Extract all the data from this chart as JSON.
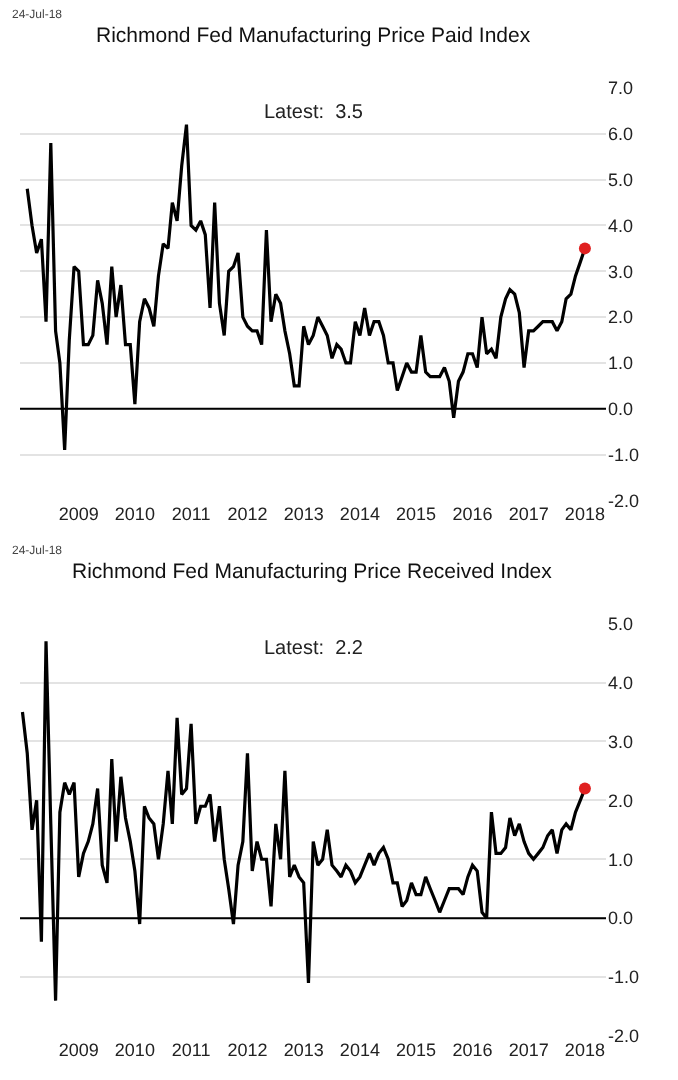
{
  "chart_data": [
    {
      "type": "line",
      "title": "Richmond Fed Manufacturing Price Paid Index",
      "annotations": [
        "24-Jul-18",
        "Latest:  3.5"
      ],
      "x": [
        "2008-08",
        "2008-09",
        "2008-10",
        "2008-11",
        "2008-12",
        "2009-01",
        "2009-02",
        "2009-03",
        "2009-04",
        "2009-05",
        "2009-06",
        "2009-07",
        "2009-08",
        "2009-09",
        "2009-10",
        "2009-11",
        "2009-12",
        "2010-01",
        "2010-02",
        "2010-03",
        "2010-04",
        "2010-05",
        "2010-06",
        "2010-07",
        "2010-08",
        "2010-09",
        "2010-10",
        "2010-11",
        "2010-12",
        "2011-01",
        "2011-02",
        "2011-03",
        "2011-04",
        "2011-05",
        "2011-06",
        "2011-07",
        "2011-08",
        "2011-09",
        "2011-10",
        "2011-11",
        "2011-12",
        "2012-01",
        "2012-02",
        "2012-03",
        "2012-04",
        "2012-05",
        "2012-06",
        "2012-07",
        "2012-08",
        "2012-09",
        "2012-10",
        "2012-11",
        "2012-12",
        "2013-01",
        "2013-02",
        "2013-03",
        "2013-04",
        "2013-05",
        "2013-06",
        "2013-07",
        "2013-08",
        "2013-09",
        "2013-10",
        "2013-11",
        "2013-12",
        "2014-01",
        "2014-02",
        "2014-03",
        "2014-04",
        "2014-05",
        "2014-06",
        "2014-07",
        "2014-08",
        "2014-09",
        "2014-10",
        "2014-11",
        "2014-12",
        "2015-01",
        "2015-02",
        "2015-03",
        "2015-04",
        "2015-05",
        "2015-06",
        "2015-07",
        "2015-08",
        "2015-09",
        "2015-10",
        "2015-11",
        "2015-12",
        "2016-01",
        "2016-02",
        "2016-03",
        "2016-04",
        "2016-05",
        "2016-06",
        "2016-07",
        "2016-08",
        "2016-09",
        "2016-10",
        "2016-11",
        "2016-12",
        "2017-01",
        "2017-02",
        "2017-03",
        "2017-04",
        "2017-05",
        "2017-06",
        "2017-07",
        "2017-08",
        "2017-09",
        "2017-10",
        "2017-11",
        "2017-12",
        "2018-01",
        "2018-02",
        "2018-03",
        "2018-04",
        "2018-05",
        "2018-06",
        "2018-07"
      ],
      "series": [
        {
          "color": "#000000",
          "values": [
            4.8,
            4.0,
            3.4,
            3.7,
            1.9,
            5.8,
            1.7,
            1.0,
            -0.9,
            1.5,
            3.1,
            3.0,
            1.4,
            1.4,
            1.6,
            2.8,
            2.3,
            1.4,
            3.1,
            2.0,
            2.7,
            1.4,
            1.4,
            0.1,
            1.9,
            2.4,
            2.2,
            1.8,
            2.9,
            3.6,
            3.5,
            4.5,
            4.1,
            5.3,
            6.2,
            4.0,
            3.9,
            4.1,
            3.8,
            2.2,
            4.5,
            2.3,
            1.6,
            3.0,
            3.1,
            3.4,
            2.0,
            1.8,
            1.7,
            1.7,
            1.4,
            3.9,
            1.9,
            2.5,
            2.3,
            1.7,
            1.2,
            0.5,
            0.5,
            1.8,
            1.4,
            1.6,
            2.0,
            1.8,
            1.6,
            1.1,
            1.4,
            1.3,
            1.0,
            1.0,
            1.9,
            1.6,
            2.2,
            1.6,
            1.9,
            1.9,
            1.6,
            1.0,
            1.0,
            0.4,
            0.7,
            1.0,
            0.8,
            0.8,
            1.6,
            0.8,
            0.7,
            0.7,
            0.7,
            0.9,
            0.6,
            -0.2,
            0.6,
            0.8,
            1.2,
            1.2,
            0.9,
            2.0,
            1.2,
            1.3,
            1.1,
            2.0,
            2.4,
            2.6,
            2.5,
            2.1,
            0.9,
            1.7,
            1.7,
            1.8,
            1.9,
            1.9,
            1.9,
            1.7,
            1.9,
            2.4,
            2.5,
            2.9,
            3.2,
            3.5
          ]
        },
        {
          "type": "scatter",
          "marker": "circle",
          "color": "#e02020",
          "x": [
            "2018-07"
          ],
          "values": [
            3.5
          ]
        }
      ],
      "xlim": [
        "2008-06-15",
        "2018-11-15"
      ],
      "xticks": [
        {
          "value": "2009-07-01",
          "label": "2009"
        },
        {
          "value": "2010-07-01",
          "label": "2010"
        },
        {
          "value": "2011-07-01",
          "label": "2011"
        },
        {
          "value": "2012-07-01",
          "label": "2012"
        },
        {
          "value": "2013-07-01",
          "label": "2013"
        },
        {
          "value": "2014-07-01",
          "label": "2014"
        },
        {
          "value": "2015-07-01",
          "label": "2015"
        },
        {
          "value": "2016-07-01",
          "label": "2016"
        },
        {
          "value": "2017-07-01",
          "label": "2017"
        },
        {
          "value": "2018-07-01",
          "label": "2018"
        }
      ],
      "ylim": [
        -2,
        7
      ],
      "yticks": [
        {
          "value": -2,
          "label": "-2.0"
        },
        {
          "value": -1,
          "label": "-1.0"
        },
        {
          "value": 0,
          "label": "0.0"
        },
        {
          "value": 1,
          "label": "1.0"
        },
        {
          "value": 2,
          "label": "2.0"
        },
        {
          "value": 3,
          "label": "3.0"
        },
        {
          "value": 4,
          "label": "4.0"
        },
        {
          "value": 5,
          "label": "5.0"
        },
        {
          "value": 6,
          "label": "6.0"
        },
        {
          "value": 7,
          "label": "7.0"
        }
      ],
      "ref_lines": [
        {
          "axis": "y",
          "value": 0,
          "color": "#000000"
        }
      ],
      "grid": "y",
      "marker": "none",
      "line_style": "solid"
    },
    {
      "type": "line",
      "title": "Richmond Fed Manufacturing Price Received Index",
      "annotations": [
        "24-Jul-18",
        "Latest:  2.2"
      ],
      "x": [
        "2008-07",
        "2008-08",
        "2008-09",
        "2008-10",
        "2008-11",
        "2008-12",
        "2009-01",
        "2009-02",
        "2009-03",
        "2009-04",
        "2009-05",
        "2009-06",
        "2009-07",
        "2009-08",
        "2009-09",
        "2009-10",
        "2009-11",
        "2009-12",
        "2010-01",
        "2010-02",
        "2010-03",
        "2010-04",
        "2010-05",
        "2010-06",
        "2010-07",
        "2010-08",
        "2010-09",
        "2010-10",
        "2010-11",
        "2010-12",
        "2011-01",
        "2011-02",
        "2011-03",
        "2011-04",
        "2011-05",
        "2011-06",
        "2011-07",
        "2011-08",
        "2011-09",
        "2011-10",
        "2011-11",
        "2011-12",
        "2012-01",
        "2012-02",
        "2012-03",
        "2012-04",
        "2012-05",
        "2012-06",
        "2012-07",
        "2012-08",
        "2012-09",
        "2012-10",
        "2012-11",
        "2012-12",
        "2013-01",
        "2013-02",
        "2013-03",
        "2013-04",
        "2013-05",
        "2013-06",
        "2013-07",
        "2013-08",
        "2013-09",
        "2013-10",
        "2013-11",
        "2013-12",
        "2014-01",
        "2014-02",
        "2014-03",
        "2014-04",
        "2014-05",
        "2014-06",
        "2014-07",
        "2014-08",
        "2014-09",
        "2014-10",
        "2014-11",
        "2014-12",
        "2015-01",
        "2015-02",
        "2015-03",
        "2015-04",
        "2015-05",
        "2015-06",
        "2015-07",
        "2015-08",
        "2015-09",
        "2015-10",
        "2015-11",
        "2015-12",
        "2016-01",
        "2016-02",
        "2016-03",
        "2016-04",
        "2016-05",
        "2016-06",
        "2016-07",
        "2016-08",
        "2016-09",
        "2016-10",
        "2016-11",
        "2016-12",
        "2017-01",
        "2017-02",
        "2017-03",
        "2017-04",
        "2017-05",
        "2017-06",
        "2017-07",
        "2017-08",
        "2017-09",
        "2017-10",
        "2017-11",
        "2017-12",
        "2018-01",
        "2018-02",
        "2018-03",
        "2018-04",
        "2018-05",
        "2018-06",
        "2018-07"
      ],
      "series": [
        {
          "color": "#000000",
          "values": [
            3.5,
            2.8,
            1.5,
            2.0,
            -0.4,
            4.7,
            1.6,
            -1.4,
            1.8,
            2.3,
            2.1,
            2.3,
            0.7,
            1.1,
            1.3,
            1.6,
            2.2,
            0.9,
            0.6,
            2.7,
            1.3,
            2.4,
            1.7,
            1.3,
            0.8,
            -0.1,
            1.9,
            1.7,
            1.6,
            1.0,
            1.6,
            2.5,
            1.6,
            3.4,
            2.1,
            2.2,
            3.3,
            1.6,
            1.9,
            1.9,
            2.1,
            1.3,
            1.9,
            1.0,
            0.5,
            -0.1,
            0.9,
            1.3,
            2.8,
            0.8,
            1.3,
            1.0,
            1.0,
            0.2,
            1.6,
            1.0,
            2.5,
            0.7,
            0.9,
            0.7,
            0.6,
            -1.1,
            1.3,
            0.9,
            1.0,
            1.5,
            0.9,
            0.8,
            0.7,
            0.9,
            0.8,
            0.6,
            0.7,
            0.9,
            1.1,
            0.9,
            1.1,
            1.2,
            1.0,
            0.6,
            0.6,
            0.2,
            0.3,
            0.6,
            0.4,
            0.4,
            0.7,
            0.5,
            0.3,
            0.1,
            0.3,
            0.5,
            0.5,
            0.5,
            0.4,
            0.7,
            0.9,
            0.8,
            0.1,
            0.0,
            1.8,
            1.1,
            1.1,
            1.2,
            1.7,
            1.4,
            1.6,
            1.3,
            1.1,
            1.0,
            1.1,
            1.2,
            1.4,
            1.5,
            1.1,
            1.5,
            1.6,
            1.5,
            1.8,
            2.0,
            2.2
          ]
        },
        {
          "type": "scatter",
          "marker": "circle",
          "color": "#e02020",
          "x": [
            "2018-07"
          ],
          "values": [
            2.2
          ]
        }
      ],
      "xlim": [
        "2008-06-15",
        "2018-11-15"
      ],
      "xticks": [
        {
          "value": "2009-07-01",
          "label": "2009"
        },
        {
          "value": "2010-07-01",
          "label": "2010"
        },
        {
          "value": "2011-07-01",
          "label": "2011"
        },
        {
          "value": "2012-07-01",
          "label": "2012"
        },
        {
          "value": "2013-07-01",
          "label": "2013"
        },
        {
          "value": "2014-07-01",
          "label": "2014"
        },
        {
          "value": "2015-07-01",
          "label": "2015"
        },
        {
          "value": "2016-07-01",
          "label": "2016"
        },
        {
          "value": "2017-07-01",
          "label": "2017"
        },
        {
          "value": "2018-07-01",
          "label": "2018"
        }
      ],
      "ylim": [
        -2,
        5
      ],
      "yticks": [
        {
          "value": -2,
          "label": "-2.0"
        },
        {
          "value": -1,
          "label": "-1.0"
        },
        {
          "value": 0,
          "label": "0.0"
        },
        {
          "value": 1,
          "label": "1.0"
        },
        {
          "value": 2,
          "label": "2.0"
        },
        {
          "value": 3,
          "label": "3.0"
        },
        {
          "value": 4,
          "label": "4.0"
        },
        {
          "value": 5,
          "label": "5.0"
        }
      ],
      "ref_lines": [
        {
          "axis": "y",
          "value": 0,
          "color": "#000000"
        }
      ],
      "grid": "y",
      "marker": "none",
      "line_style": "solid"
    }
  ]
}
